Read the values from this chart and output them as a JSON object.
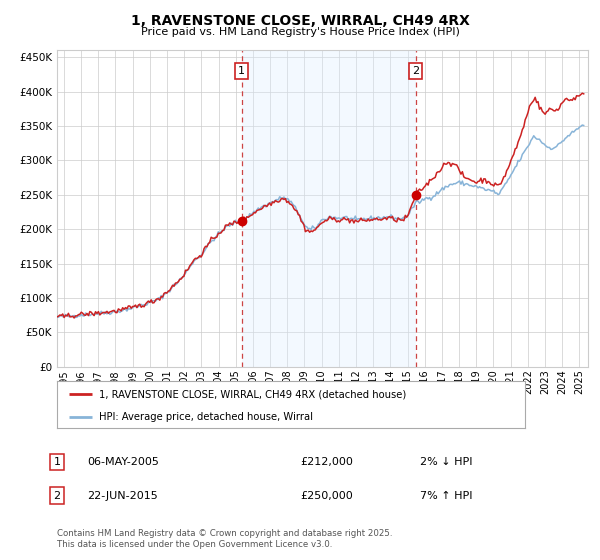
{
  "title": "1, RAVENSTONE CLOSE, WIRRAL, CH49 4RX",
  "subtitle": "Price paid vs. HM Land Registry's House Price Index (HPI)",
  "ylabel_ticks": [
    "£0",
    "£50K",
    "£100K",
    "£150K",
    "£200K",
    "£250K",
    "£300K",
    "£350K",
    "£400K",
    "£450K"
  ],
  "ytick_values": [
    0,
    50000,
    100000,
    150000,
    200000,
    250000,
    300000,
    350000,
    400000,
    450000
  ],
  "ylim": [
    0,
    460000
  ],
  "xlim_start": 1994.6,
  "xlim_end": 2025.5,
  "sale1_x": 2005.35,
  "sale1_y": 212000,
  "sale1_date": "06-MAY-2005",
  "sale1_price": "£212,000",
  "sale1_hpi": "2% ↓ HPI",
  "sale2_x": 2015.47,
  "sale2_y": 250000,
  "sale2_date": "22-JUN-2015",
  "sale2_price": "£250,000",
  "sale2_hpi": "7% ↑ HPI",
  "vline_color": "#cc4444",
  "sale_dot_color": "#cc0000",
  "hpi_line_color": "#88b4d8",
  "price_line_color": "#cc2222",
  "shaded_region_color": "#ddeeff",
  "legend_label_price": "1, RAVENSTONE CLOSE, WIRRAL, CH49 4RX (detached house)",
  "legend_label_hpi": "HPI: Average price, detached house, Wirral",
  "footer": "Contains HM Land Registry data © Crown copyright and database right 2025.\nThis data is licensed under the Open Government Licence v3.0.",
  "background_color": "#ffffff",
  "grid_color": "#cccccc",
  "xtick_years": [
    1995,
    1996,
    1997,
    1998,
    1999,
    2000,
    2001,
    2002,
    2003,
    2004,
    2005,
    2006,
    2007,
    2008,
    2009,
    2010,
    2011,
    2012,
    2013,
    2014,
    2015,
    2016,
    2017,
    2018,
    2019,
    2020,
    2021,
    2022,
    2023,
    2024,
    2025
  ]
}
